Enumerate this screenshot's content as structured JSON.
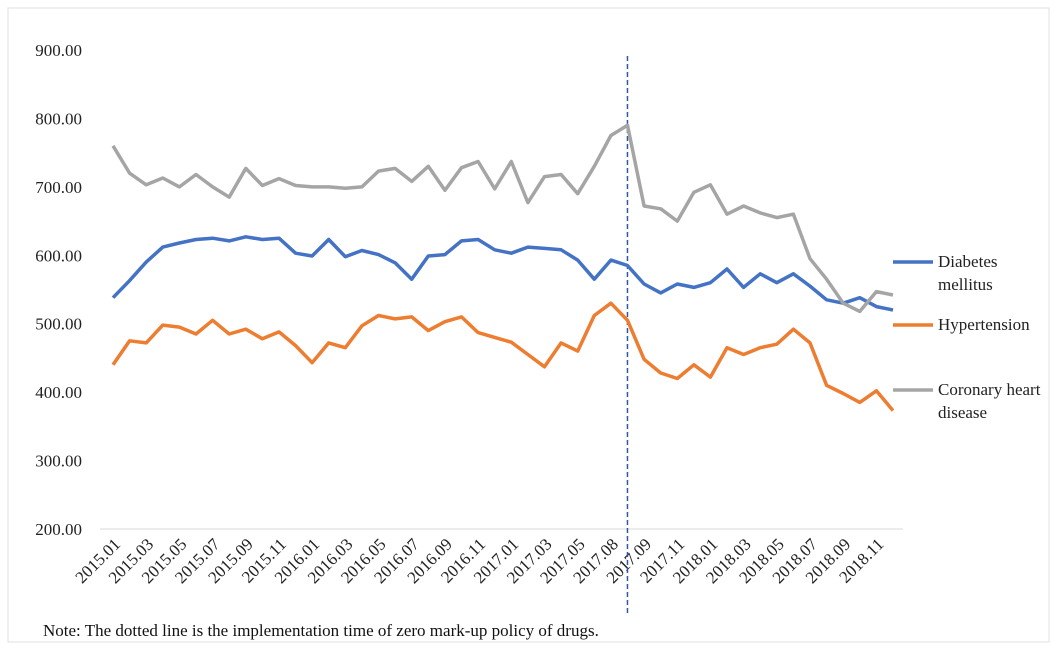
{
  "chart_data": {
    "type": "line",
    "categories": [
      "2015.01",
      null,
      "2015.03",
      null,
      "2015.05",
      null,
      "2015.07",
      null,
      "2015.09",
      null,
      "2015.11",
      null,
      "2016.01",
      null,
      "2016.03",
      null,
      "2016.05",
      null,
      "2016.07",
      null,
      "2016.09",
      null,
      "2016.11",
      null,
      "2017.01",
      null,
      "2017.03",
      null,
      "2017.05",
      null,
      "2017.08",
      null,
      "2017.09",
      null,
      "2017.11",
      null,
      "2018.01",
      null,
      "2018.03",
      null,
      "2018.05",
      null,
      "2018.07",
      null,
      "2018.09",
      null,
      "2018.11",
      null
    ],
    "series": [
      {
        "name": "Diabetes mellitus",
        "color": "#4472c4",
        "values": [
          538,
          563,
          590,
          612,
          618,
          623,
          625,
          621,
          627,
          623,
          625,
          603,
          599,
          623,
          598,
          607,
          601,
          589,
          565,
          599,
          601,
          621,
          623,
          608,
          603,
          612,
          610,
          608,
          593,
          565,
          593,
          585,
          558,
          545,
          558,
          553,
          560,
          580,
          553,
          573,
          560,
          573,
          555,
          535,
          530,
          538,
          525,
          520
        ]
      },
      {
        "name": "Hypertension",
        "color": "#ed7d31",
        "values": [
          440,
          475,
          472,
          498,
          495,
          485,
          505,
          485,
          492,
          478,
          488,
          468,
          443,
          472,
          465,
          497,
          512,
          507,
          510,
          490,
          503,
          510,
          487,
          480,
          473,
          455,
          437,
          472,
          460,
          512,
          530,
          505,
          448,
          428,
          420,
          440,
          422,
          465,
          455,
          465,
          470,
          492,
          472,
          410,
          398,
          385,
          402,
          373
        ]
      },
      {
        "name": "Coronary heart disease",
        "color": "#a5a5a5",
        "values": [
          760,
          720,
          703,
          713,
          700,
          718,
          700,
          685,
          727,
          702,
          712,
          702,
          700,
          700,
          698,
          700,
          723,
          727,
          708,
          730,
          695,
          728,
          737,
          697,
          737,
          677,
          715,
          718,
          690,
          730,
          775,
          790,
          672,
          668,
          650,
          692,
          703,
          660,
          672,
          662,
          655,
          660,
          595,
          565,
          530,
          518,
          547,
          542
        ]
      }
    ],
    "ylim": [
      200,
      900
    ],
    "yticks": [
      {
        "value": 200,
        "label": "200.00"
      },
      {
        "value": 300,
        "label": "300.00"
      },
      {
        "value": 400,
        "label": "400.00"
      },
      {
        "value": 500,
        "label": "500.00"
      },
      {
        "value": 600,
        "label": "600.00"
      },
      {
        "value": 700,
        "label": "700.00"
      },
      {
        "value": 800,
        "label": "800.00"
      },
      {
        "value": 900,
        "label": "900.00"
      }
    ],
    "grid": false,
    "vline": {
      "index": 31,
      "color": "#2f55a4"
    },
    "note": "Note: The dotted line is the implementation time of  zero mark-up policy of drugs."
  }
}
